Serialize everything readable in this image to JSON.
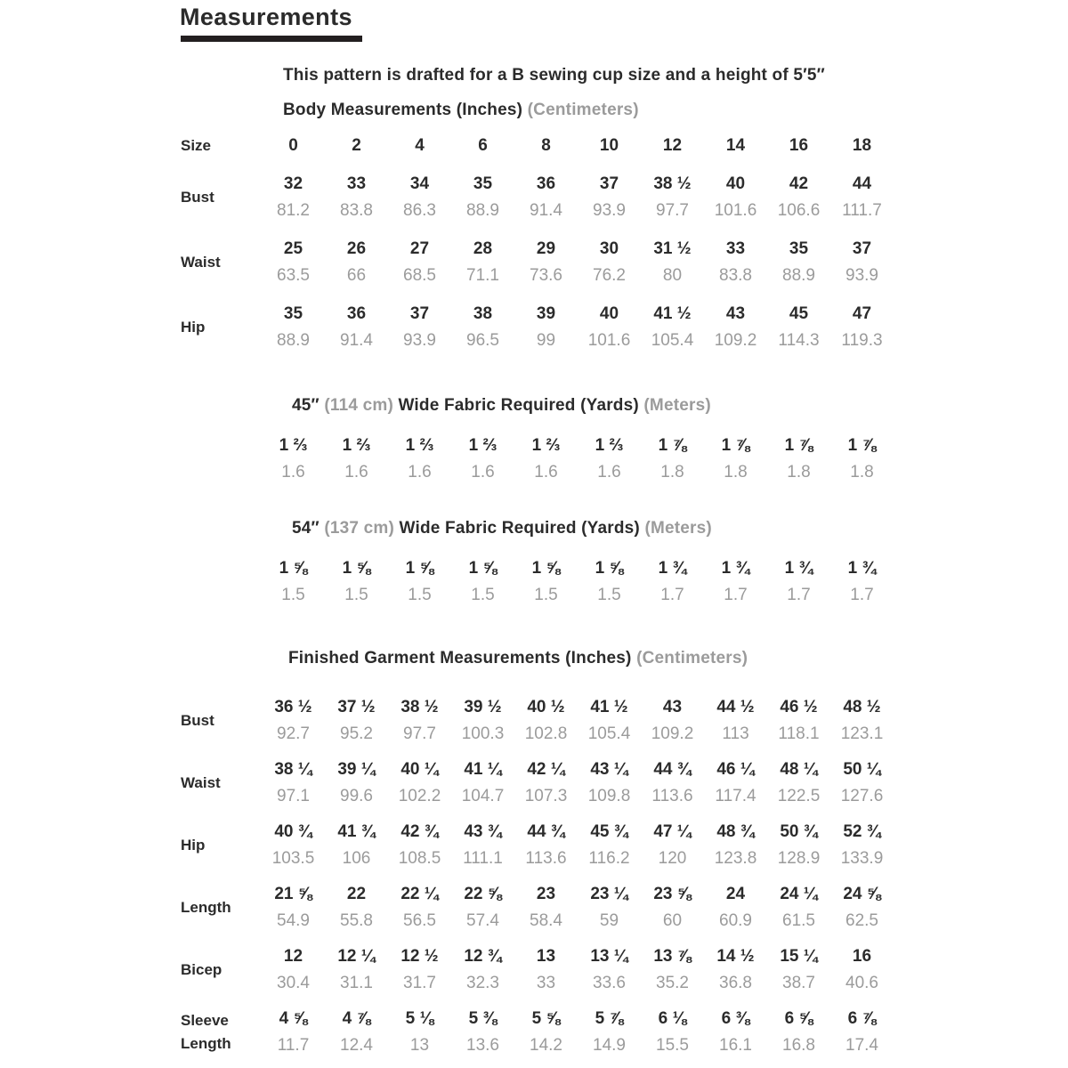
{
  "title": "Measurements",
  "intro": "This pattern is drafted for a B sewing cup size and a height of 5′5″",
  "colors": {
    "text": "#2b2b2b",
    "muted": "#9b9b9b",
    "underline": "#231f20"
  },
  "size_row": {
    "label": "Size",
    "values": [
      "0",
      "2",
      "4",
      "6",
      "8",
      "10",
      "12",
      "14",
      "16",
      "18"
    ]
  },
  "body_section": {
    "title_main": "Body Measurements (Inches)",
    "title_muted": "(Centimeters)",
    "rows": [
      {
        "label": "Bust",
        "inches": [
          "32",
          "33",
          "34",
          "35",
          "36",
          "37",
          "38 ½",
          "40",
          "42",
          "44"
        ],
        "cm": [
          "81.2",
          "83.8",
          "86.3",
          "88.9",
          "91.4",
          "93.9",
          "97.7",
          "101.6",
          "106.6",
          "111.7"
        ]
      },
      {
        "label": "Waist",
        "inches": [
          "25",
          "26",
          "27",
          "28",
          "29",
          "30",
          "31 ½",
          "33",
          "35",
          "37"
        ],
        "cm": [
          "63.5",
          "66",
          "68.5",
          "71.1",
          "73.6",
          "76.2",
          "80",
          "83.8",
          "88.9",
          "93.9"
        ]
      },
      {
        "label": "Hip",
        "inches": [
          "35",
          "36",
          "37",
          "38",
          "39",
          "40",
          "41 ½",
          "43",
          "45",
          "47"
        ],
        "cm": [
          "88.9",
          "91.4",
          "93.9",
          "96.5",
          "99",
          "101.6",
          "105.4",
          "109.2",
          "114.3",
          "119.3"
        ]
      }
    ]
  },
  "fabric45": {
    "title_width": "45″",
    "title_width_cm": "(114 cm)",
    "title_main": "Wide Fabric Required (Yards)",
    "title_muted": "(Meters)",
    "yards": [
      "1 ⅔",
      "1 ⅔",
      "1 ⅔",
      "1 ⅔",
      "1 ⅔",
      "1 ⅔",
      "1 ⅞",
      "1 ⅞",
      "1 ⅞",
      "1 ⅞"
    ],
    "meters": [
      "1.6",
      "1.6",
      "1.6",
      "1.6",
      "1.6",
      "1.6",
      "1.8",
      "1.8",
      "1.8",
      "1.8"
    ]
  },
  "fabric54": {
    "title_width": "54″",
    "title_width_cm": "(137 cm)",
    "title_main": "Wide Fabric Required (Yards)",
    "title_muted": "(Meters)",
    "yards": [
      "1 ⅝",
      "1 ⅝",
      "1 ⅝",
      "1 ⅝",
      "1 ⅝",
      "1 ⅝",
      "1 ¾",
      "1 ¾",
      "1 ¾",
      "1 ¾"
    ],
    "meters": [
      "1.5",
      "1.5",
      "1.5",
      "1.5",
      "1.5",
      "1.5",
      "1.7",
      "1.7",
      "1.7",
      "1.7"
    ]
  },
  "finished_section": {
    "title_main": "Finished Garment Measurements (Inches)",
    "title_muted": "(Centimeters)",
    "rows": [
      {
        "label": "Bust",
        "inches": [
          "36 ½",
          "37 ½",
          "38 ½",
          "39 ½",
          "40 ½",
          "41 ½",
          "43",
          "44 ½",
          "46 ½",
          "48 ½"
        ],
        "cm": [
          "92.7",
          "95.2",
          "97.7",
          "100.3",
          "102.8",
          "105.4",
          "109.2",
          "113",
          "118.1",
          "123.1"
        ]
      },
      {
        "label": "Waist",
        "inches": [
          "38 ¼",
          "39 ¼",
          "40 ¼",
          "41 ¼",
          "42 ¼",
          "43 ¼",
          "44 ¾",
          "46 ¼",
          "48 ¼",
          "50 ¼"
        ],
        "cm": [
          "97.1",
          "99.6",
          "102.2",
          "104.7",
          "107.3",
          "109.8",
          "113.6",
          "117.4",
          "122.5",
          "127.6"
        ]
      },
      {
        "label": "Hip",
        "inches": [
          "40 ¾",
          "41 ¾",
          "42 ¾",
          "43 ¾",
          "44 ¾",
          "45 ¾",
          "47 ¼",
          "48 ¾",
          "50 ¾",
          "52 ¾"
        ],
        "cm": [
          "103.5",
          "106",
          "108.5",
          "111.1",
          "113.6",
          "116.2",
          "120",
          "123.8",
          "128.9",
          "133.9"
        ]
      },
      {
        "label": "Length",
        "inches": [
          "21 ⅝",
          "22",
          "22 ¼",
          "22 ⅝",
          "23",
          "23 ¼",
          "23 ⅝",
          "24",
          "24 ¼",
          "24 ⅝"
        ],
        "cm": [
          "54.9",
          "55.8",
          "56.5",
          "57.4",
          "58.4",
          "59",
          "60",
          "60.9",
          "61.5",
          "62.5"
        ]
      },
      {
        "label": "Bicep",
        "inches": [
          "12",
          "12 ¼",
          "12 ½",
          "12 ¾",
          "13",
          "13 ¼",
          "13 ⅞",
          "14 ½",
          "15 ¼",
          "16"
        ],
        "cm": [
          "30.4",
          "31.1",
          "31.7",
          "32.3",
          "33",
          "33.6",
          "35.2",
          "36.8",
          "38.7",
          "40.6"
        ]
      },
      {
        "label": "Sleeve Length",
        "inches": [
          "4 ⅝",
          "4 ⅞",
          "5 ⅛",
          "5 ⅜",
          "5 ⅝",
          "5 ⅞",
          "6 ⅛",
          "6 ⅜",
          "6 ⅝",
          "6 ⅞"
        ],
        "cm": [
          "11.7",
          "12.4",
          "13",
          "13.6",
          "14.2",
          "14.9",
          "15.5",
          "16.1",
          "16.8",
          "17.4"
        ]
      }
    ]
  }
}
